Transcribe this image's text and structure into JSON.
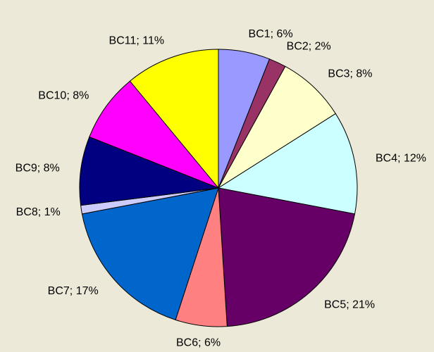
{
  "chart_data": {
    "type": "pie",
    "categories": [
      "BC1",
      "BC2",
      "BC3",
      "BC4",
      "BC5",
      "BC6",
      "BC7",
      "BC8",
      "BC9",
      "BC10",
      "BC11"
    ],
    "values": [
      6,
      2,
      8,
      12,
      21,
      6,
      17,
      1,
      8,
      8,
      11
    ],
    "value_labels": [
      "BC1; 6%",
      "BC2; 2%",
      "BC3; 8%",
      "BC4; 12%",
      "BC5; 21%",
      "BC6; 6%",
      "BC7; 17%",
      "BC8; 1%",
      "BC9; 8%",
      "BC10; 8%",
      "BC11; 11%"
    ],
    "colors": [
      "#9999ff",
      "#993366",
      "#ffffcc",
      "#ccffff",
      "#660066",
      "#ff8080",
      "#0066cc",
      "#ccccff",
      "#000080",
      "#ff00ff",
      "#ffff00"
    ]
  }
}
